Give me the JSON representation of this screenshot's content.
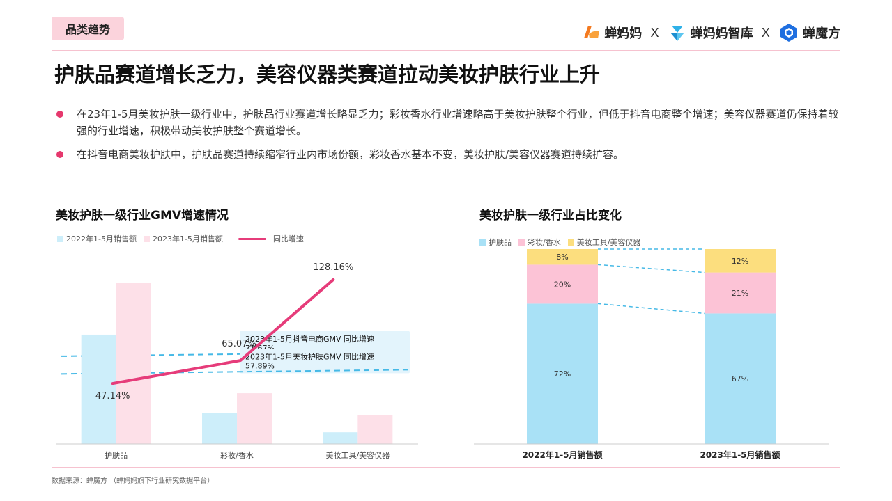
{
  "header": {
    "tag": "品类趋势",
    "logos": [
      "蝉妈妈",
      "蝉妈妈智库",
      "蝉魔方"
    ],
    "separator": "X"
  },
  "title": "护肤品赛道增长乏力，美容仪器类赛道拉动美妆护肤行业上升",
  "bullets": [
    "在23年1-5月美妆护肤一级行业中，护肤品行业赛道增长略显乏力；彩妆香水行业增速略高于美妆护肤整个行业，但低于抖音电商整个增速；美容仪器赛道仍保持着较强的行业增速，积极带动美妆护肤整个赛道增长。",
    "在抖音电商美妆护肤中，护肤品赛道持续缩窄行业内市场份额，彩妆香水基本不变，美妆护肤/美容仪器赛道持续扩容。"
  ],
  "chart_data": [
    {
      "type": "bar",
      "title": "美妆护肤一级行业GMV增速情况",
      "categories": [
        "护肤品",
        "彩妆/香水",
        "美妆工具/美容仪器"
      ],
      "series": [
        {
          "name": "2022年1-5月销售额",
          "values": [
            140,
            40,
            15
          ],
          "color": "#cdeefa"
        },
        {
          "name": "2023年1-5月销售额",
          "values": [
            206,
            65,
            37
          ],
          "color": "#fde0e8"
        },
        {
          "name": "同比增速",
          "kind": "line",
          "values": [
            47.14,
            65.07,
            128.16
          ],
          "labels": [
            "47.14%",
            "65.07%",
            "128.16%"
          ],
          "color": "#e63c7a"
        }
      ],
      "ylim_bars": [
        0,
        230
      ],
      "ylim_growth": [
        0,
        140
      ],
      "reference_lines": [
        {
          "label": "2023年1-5月抖音电商GMV 同比增速",
          "value_label": "71.67%",
          "value": 71.67
        },
        {
          "label": "2023年1-5月美妆护肤GMV 同比增速",
          "value_label": "57.89%",
          "value": 57.89
        }
      ]
    },
    {
      "type": "bar",
      "stacked": true,
      "title": "美妆护肤一级行业占比变化",
      "categories": [
        "2022年1-5月销售额",
        "2023年1-5月销售额"
      ],
      "series": [
        {
          "name": "护肤品",
          "values": [
            72,
            67
          ],
          "labels": [
            "72%",
            "67%"
          ],
          "color": "#a9e1f6"
        },
        {
          "name": "彩妆/香水",
          "values": [
            20,
            21
          ],
          "labels": [
            "20%",
            "21%"
          ],
          "color": "#fcc3d6"
        },
        {
          "name": "美妆工具/美容仪器",
          "values": [
            8,
            12
          ],
          "labels": [
            "8%",
            "12%"
          ],
          "color": "#fcde7e"
        }
      ]
    }
  ],
  "footer": {
    "source": "数据来源：蝉魔方 （蝉妈妈旗下行业研究数据平台）"
  }
}
